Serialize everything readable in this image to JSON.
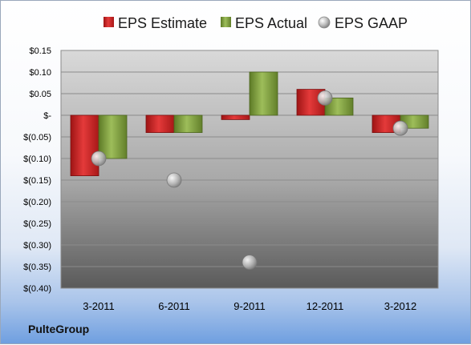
{
  "company": "PulteGroup",
  "chart_data": {
    "type": "bar",
    "categories": [
      "3-2011",
      "6-2011",
      "9-2011",
      "12-2011",
      "3-2012"
    ],
    "series": [
      {
        "name": "EPS Estimate",
        "kind": "bar",
        "color": "#d42a2a",
        "values": [
          -0.14,
          -0.04,
          -0.01,
          0.06,
          -0.04
        ]
      },
      {
        "name": "EPS Actual",
        "kind": "bar",
        "color": "#8aa84a",
        "values": [
          -0.1,
          -0.04,
          0.1,
          0.04,
          -0.03
        ]
      },
      {
        "name": "EPS GAAP",
        "kind": "point",
        "color": "#b8b8b8",
        "values": [
          -0.1,
          -0.15,
          -0.34,
          0.04,
          -0.03
        ]
      }
    ],
    "yticks": [
      {
        "value": 0.15,
        "label": "$0.15"
      },
      {
        "value": 0.1,
        "label": "$0.10"
      },
      {
        "value": 0.05,
        "label": "$0.05"
      },
      {
        "value": 0.0,
        "label": "$-"
      },
      {
        "value": -0.05,
        "label": "$(0.05)"
      },
      {
        "value": -0.1,
        "label": "$(0.10)"
      },
      {
        "value": -0.15,
        "label": "$(0.15)"
      },
      {
        "value": -0.2,
        "label": "$(0.20)"
      },
      {
        "value": -0.25,
        "label": "$(0.25)"
      },
      {
        "value": -0.3,
        "label": "$(0.30)"
      },
      {
        "value": -0.35,
        "label": "$(0.35)"
      },
      {
        "value": -0.4,
        "label": "$(0.40)"
      }
    ],
    "ylim": [
      -0.4,
      0.15
    ],
    "grid": true,
    "legend_position": "top"
  }
}
